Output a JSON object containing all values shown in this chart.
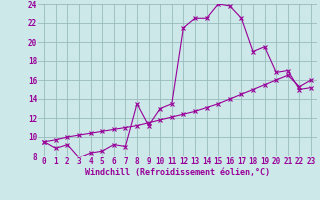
{
  "xlabel": "Windchill (Refroidissement éolien,°C)",
  "background_color": "#cce8e8",
  "line_color": "#990099",
  "grid_color": "#99bbbb",
  "xlim": [
    -0.5,
    23.5
  ],
  "ylim": [
    8,
    24
  ],
  "yticks": [
    8,
    10,
    12,
    14,
    16,
    18,
    20,
    22,
    24
  ],
  "xticks": [
    0,
    1,
    2,
    3,
    4,
    5,
    6,
    7,
    8,
    9,
    10,
    11,
    12,
    13,
    14,
    15,
    16,
    17,
    18,
    19,
    20,
    21,
    22,
    23
  ],
  "curve1_x": [
    0,
    1,
    2,
    3,
    4,
    5,
    6,
    7,
    8,
    9,
    10,
    11,
    12,
    13,
    14,
    15,
    16,
    17,
    18,
    19,
    20,
    21,
    22,
    23
  ],
  "curve1_y": [
    9.5,
    8.8,
    9.2,
    7.8,
    8.3,
    8.5,
    9.2,
    9.0,
    13.5,
    11.2,
    13.0,
    13.5,
    21.5,
    22.5,
    22.5,
    24.0,
    23.8,
    22.5,
    19.0,
    19.5,
    16.8,
    17.0,
    15.0,
    15.2
  ],
  "curve2_x": [
    0,
    1,
    2,
    3,
    4,
    5,
    6,
    7,
    8,
    9,
    10,
    11,
    12,
    13,
    14,
    15,
    16,
    17,
    18,
    19,
    20,
    21,
    22,
    23
  ],
  "curve2_y": [
    9.5,
    9.7,
    10.0,
    10.2,
    10.4,
    10.6,
    10.8,
    11.0,
    11.2,
    11.5,
    11.8,
    12.1,
    12.4,
    12.7,
    13.1,
    13.5,
    14.0,
    14.5,
    15.0,
    15.5,
    16.0,
    16.5,
    15.3,
    16.0
  ],
  "tick_fontsize": 5.5,
  "xlabel_fontsize": 6.0
}
